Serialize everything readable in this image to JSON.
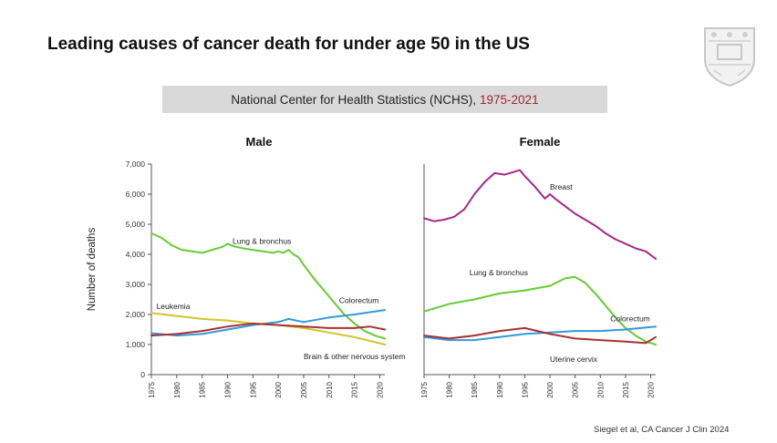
{
  "slide": {
    "title": "Leading causes of cancer death for under age 50 in the US",
    "subtitle_main": "National Center for Health Statistics (NCHS),",
    "subtitle_years": "1975-2021",
    "citation": "Siegel et al, CA Cancer J Clin 2024",
    "years_color": "#a0262d",
    "logo_icon": "shield-crest-icon"
  },
  "chart_data": [
    {
      "type": "line",
      "title": "Male",
      "ylabel": "Number of deaths",
      "ylim": [
        0,
        7000
      ],
      "yticks": [
        0,
        1000,
        2000,
        3000,
        4000,
        5000,
        6000,
        7000
      ],
      "ytick_labels": [
        "0",
        "1,000",
        "2,000",
        "3,000",
        "4,000",
        "5,000",
        "6,000",
        "7,000"
      ],
      "xlim": [
        1975,
        2021
      ],
      "xticks": [
        1975,
        1980,
        1985,
        1990,
        1995,
        2000,
        2005,
        2010,
        2015,
        2020
      ],
      "grid": false,
      "series": [
        {
          "name": "Lung & bronchus",
          "color": "#66cc33",
          "label_pos": [
            1991,
            4350
          ],
          "x": [
            1975,
            1977,
            1979,
            1981,
            1983,
            1985,
            1987,
            1989,
            1990,
            1991,
            1993,
            1995,
            1997,
            1999,
            2000,
            2001,
            2002,
            2003,
            2004,
            2005,
            2007,
            2009,
            2011,
            2013,
            2015,
            2017,
            2019,
            2021
          ],
          "y": [
            4700,
            4550,
            4300,
            4150,
            4100,
            4050,
            4150,
            4250,
            4350,
            4280,
            4200,
            4150,
            4100,
            4050,
            4100,
            4050,
            4150,
            4000,
            3900,
            3650,
            3200,
            2800,
            2400,
            2000,
            1700,
            1450,
            1300,
            1200
          ]
        },
        {
          "name": "Colorectum",
          "color": "#3399dd",
          "label_pos": [
            2012,
            2380
          ],
          "x": [
            1975,
            1980,
            1985,
            1990,
            1995,
            2000,
            2002,
            2005,
            2010,
            2015,
            2021
          ],
          "y": [
            1380,
            1300,
            1350,
            1500,
            1650,
            1750,
            1850,
            1750,
            1900,
            2000,
            2150
          ]
        },
        {
          "name": "Leukemia",
          "color": "#d4c42a",
          "label_pos": [
            1976,
            2180
          ],
          "x": [
            1975,
            1980,
            1985,
            1990,
            1995,
            2000,
            2005,
            2010,
            2015,
            2021
          ],
          "y": [
            2050,
            1950,
            1850,
            1800,
            1700,
            1650,
            1550,
            1400,
            1250,
            1000
          ]
        },
        {
          "name": "Brain & other nervous system",
          "color": "#a83232",
          "label_pos": [
            2005,
            520
          ],
          "x": [
            1975,
            1980,
            1985,
            1990,
            1995,
            2000,
            2005,
            2010,
            2015,
            2018,
            2021
          ],
          "y": [
            1300,
            1350,
            1450,
            1600,
            1700,
            1650,
            1600,
            1550,
            1550,
            1600,
            1500
          ]
        }
      ]
    },
    {
      "type": "line",
      "title": "Female",
      "ylim": [
        0,
        7000
      ],
      "xlim": [
        1975,
        2021
      ],
      "xticks": [
        1975,
        1980,
        1985,
        1990,
        1995,
        2000,
        2005,
        2010,
        2015,
        2020
      ],
      "grid": false,
      "series": [
        {
          "name": "Breast",
          "color": "#a8288a",
          "label_pos": [
            2000,
            6150
          ],
          "x": [
            1975,
            1977,
            1979,
            1981,
            1983,
            1985,
            1987,
            1989,
            1991,
            1993,
            1994,
            1995,
            1997,
            1999,
            2000,
            2001,
            2003,
            2005,
            2007,
            2009,
            2011,
            2013,
            2015,
            2017,
            2019,
            2021
          ],
          "y": [
            5200,
            5100,
            5150,
            5250,
            5500,
            6000,
            6400,
            6700,
            6650,
            6750,
            6800,
            6600,
            6250,
            5850,
            6000,
            5850,
            5600,
            5350,
            5150,
            4950,
            4700,
            4500,
            4350,
            4200,
            4100,
            3850
          ]
        },
        {
          "name": "Lung & bronchus",
          "color": "#66cc33",
          "label_pos": [
            1984,
            3300
          ],
          "x": [
            1975,
            1980,
            1985,
            1990,
            1995,
            2000,
            2003,
            2005,
            2007,
            2009,
            2011,
            2013,
            2015,
            2017,
            2019,
            2021
          ],
          "y": [
            2100,
            2350,
            2500,
            2700,
            2800,
            2950,
            3200,
            3250,
            3050,
            2700,
            2300,
            1900,
            1550,
            1300,
            1100,
            1000
          ]
        },
        {
          "name": "Colorectum",
          "color": "#3399dd",
          "label_pos": [
            2012,
            1780
          ],
          "x": [
            1975,
            1980,
            1985,
            1990,
            1995,
            2000,
            2005,
            2010,
            2015,
            2021
          ],
          "y": [
            1250,
            1150,
            1150,
            1250,
            1350,
            1400,
            1450,
            1450,
            1500,
            1600
          ]
        },
        {
          "name": "Uterine cervix",
          "color": "#a83232",
          "label_pos": [
            2000,
            420
          ],
          "x": [
            1975,
            1980,
            1985,
            1990,
            1995,
            2000,
            2005,
            2010,
            2015,
            2019,
            2021
          ],
          "y": [
            1300,
            1200,
            1300,
            1450,
            1550,
            1350,
            1200,
            1150,
            1100,
            1050,
            1250
          ]
        }
      ]
    }
  ]
}
